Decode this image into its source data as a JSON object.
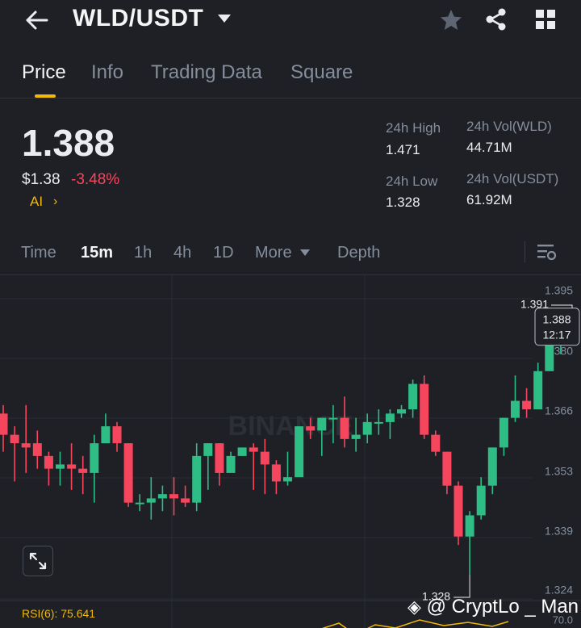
{
  "header": {
    "pair": "WLD/USDT",
    "icons": [
      "back-arrow-icon",
      "caret-down-icon",
      "star-icon",
      "share-icon",
      "grid-icon"
    ]
  },
  "tabs": [
    "Price",
    "Info",
    "Trading Data",
    "Square"
  ],
  "ticker": {
    "last_price": "1.388",
    "fiat_price": "$1.38",
    "change": "-3.48%",
    "ai_label": "AI",
    "high_label": "24h High",
    "high_value": "1.471",
    "low_label": "24h Low",
    "low_value": "1.328",
    "vol_base_label": "24h Vol(WLD)",
    "vol_base_value": "44.71M",
    "vol_quote_label": "24h Vol(USDT)",
    "vol_quote_value": "61.92M"
  },
  "timeframes": {
    "items": [
      "Time",
      "15m",
      "1h",
      "4h",
      "1D",
      "More",
      "Depth"
    ],
    "selected": "15m"
  },
  "colors": {
    "up": "#2ebd85",
    "down": "#f6465d",
    "accent": "#f0b90b",
    "bg": "#1e2026"
  },
  "chart_data": {
    "type": "candlestick",
    "y_ticks": [
      "1.395",
      "1.380",
      "1.366",
      "1.353",
      "1.339",
      "1.324"
    ],
    "ylim": [
      1.324,
      1.395
    ],
    "current_price": "1.388",
    "current_time": "12:17",
    "max_label": "1.391",
    "min_label": "1.328",
    "watermark": "BINANCE",
    "candles": [
      [
        1.366,
        1.361,
        1.368,
        1.357
      ],
      [
        1.361,
        1.359,
        1.363,
        1.35
      ],
      [
        1.359,
        1.358,
        1.368,
        1.352
      ],
      [
        1.359,
        1.356,
        1.362,
        1.353
      ],
      [
        1.356,
        1.353,
        1.357,
        1.349
      ],
      [
        1.353,
        1.354,
        1.357,
        1.349
      ],
      [
        1.354,
        1.353,
        1.359,
        1.348
      ],
      [
        1.353,
        1.352,
        1.356,
        1.347
      ],
      [
        1.352,
        1.359,
        1.361,
        1.345
      ],
      [
        1.359,
        1.363,
        1.366,
        1.359
      ],
      [
        1.363,
        1.359,
        1.364,
        1.357
      ],
      [
        1.359,
        1.345,
        1.359,
        1.344
      ],
      [
        1.345,
        1.345,
        1.347,
        1.343
      ],
      [
        1.345,
        1.346,
        1.351,
        1.341
      ],
      [
        1.346,
        1.347,
        1.349,
        1.343
      ],
      [
        1.347,
        1.346,
        1.351,
        1.342
      ],
      [
        1.346,
        1.345,
        1.349,
        1.344
      ],
      [
        1.345,
        1.356,
        1.359,
        1.343
      ],
      [
        1.356,
        1.359,
        1.359,
        1.348
      ],
      [
        1.359,
        1.352,
        1.359,
        1.349
      ],
      [
        1.352,
        1.356,
        1.357,
        1.353
      ],
      [
        1.356,
        1.358,
        1.358,
        1.356
      ],
      [
        1.358,
        1.357,
        1.359,
        1.348
      ],
      [
        1.357,
        1.354,
        1.36,
        1.347
      ],
      [
        1.354,
        1.35,
        1.355,
        1.347
      ],
      [
        1.35,
        1.351,
        1.357,
        1.349
      ],
      [
        1.351,
        1.363,
        1.363,
        1.352
      ],
      [
        1.363,
        1.362,
        1.365,
        1.36
      ],
      [
        1.362,
        1.365,
        1.365,
        1.356
      ],
      [
        1.365,
        1.365,
        1.368,
        1.359
      ],
      [
        1.365,
        1.36,
        1.37,
        1.358
      ],
      [
        1.36,
        1.361,
        1.365,
        1.357
      ],
      [
        1.361,
        1.364,
        1.366,
        1.359
      ],
      [
        1.364,
        1.364,
        1.367,
        1.361
      ],
      [
        1.364,
        1.366,
        1.367,
        1.36
      ],
      [
        1.366,
        1.367,
        1.368,
        1.365
      ],
      [
        1.367,
        1.373,
        1.374,
        1.365
      ],
      [
        1.373,
        1.361,
        1.375,
        1.36
      ],
      [
        1.361,
        1.357,
        1.362,
        1.356
      ],
      [
        1.357,
        1.349,
        1.357,
        1.347
      ],
      [
        1.349,
        1.337,
        1.35,
        1.335
      ],
      [
        1.337,
        1.342,
        1.343,
        1.328
      ],
      [
        1.342,
        1.349,
        1.351,
        1.341
      ],
      [
        1.349,
        1.358,
        1.358,
        1.347
      ],
      [
        1.358,
        1.365,
        1.365,
        1.356
      ],
      [
        1.365,
        1.369,
        1.375,
        1.364
      ],
      [
        1.369,
        1.367,
        1.372,
        1.365
      ],
      [
        1.367,
        1.376,
        1.378,
        1.368
      ],
      [
        1.376,
        1.383,
        1.383,
        1.376
      ],
      [
        1.383,
        1.386,
        1.387,
        1.38
      ],
      [
        1.386,
        1.388,
        1.391,
        1.383
      ]
    ]
  },
  "footer": {
    "rsi_label": "RSI(6): 75.641",
    "rsi_axis": "70.0",
    "watermark": "@ CryptLo _ Man"
  }
}
